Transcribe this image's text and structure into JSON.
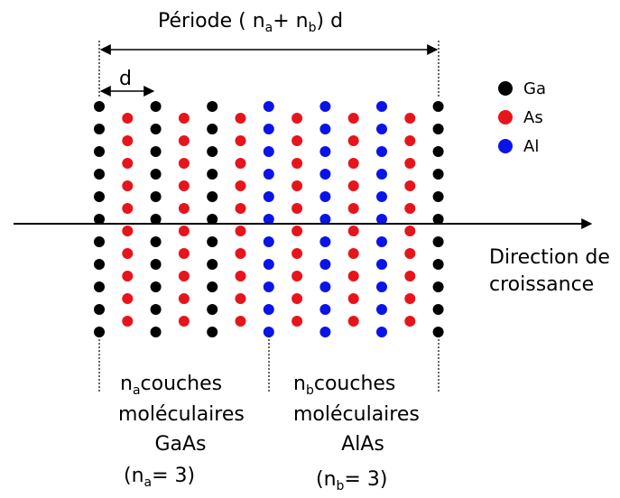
{
  "title": {
    "start": "Période ( n",
    "sub_a": "a",
    "middle": "+ n",
    "sub_b": "b",
    "end": ") d"
  },
  "spacing_label": "d",
  "legend": [
    {
      "label": "Ga",
      "color": "#000000"
    },
    {
      "label": "As",
      "color": "#e8141b"
    },
    {
      "label": "Al",
      "color": "#0a14e8"
    }
  ],
  "direction_label": [
    "Direction de",
    "croissance"
  ],
  "layers": [
    {
      "n": "n",
      "sub": "a",
      "word": "couches",
      "line2": "moléculaires",
      "line3": "GaAs",
      "count_open": "(n",
      "count_sub": "a",
      "count_close": "= 3)"
    },
    {
      "n": "n",
      "sub": "b",
      "word": "couches",
      "line2": "moléculaires",
      "line3": "AlAs",
      "count_open": "(n",
      "count_sub": "b",
      "count_close": "= 3)"
    }
  ]
}
